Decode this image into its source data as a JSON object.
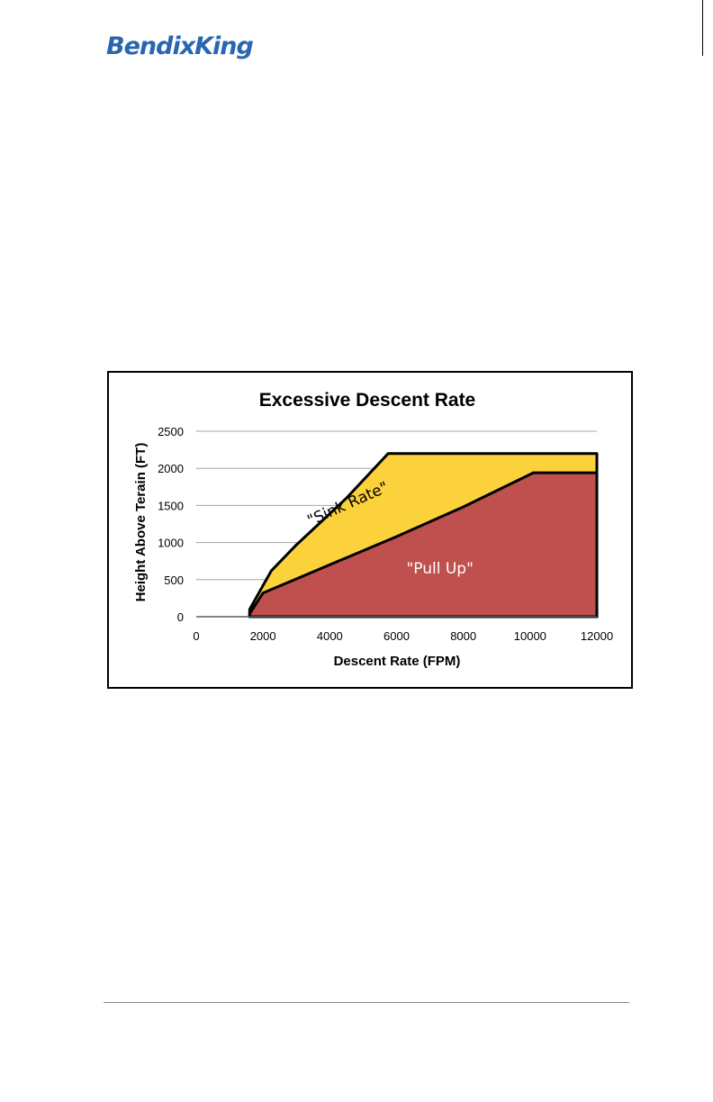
{
  "header": {
    "logo_text": "BendixKing",
    "brand_color": "#2a66b0"
  },
  "chart_data": {
    "type": "area",
    "title": "Excessive Descent Rate",
    "xlabel": "Descent Rate (FPM)",
    "ylabel": "Height Above Terain (FT)",
    "xlim": [
      0,
      12000
    ],
    "ylim": [
      0,
      2500
    ],
    "x_ticks": [
      "0",
      "2000",
      "4000",
      "6000",
      "8000",
      "10000",
      "12000"
    ],
    "y_ticks": [
      "0",
      "500",
      "1000",
      "1500",
      "2000",
      "2500"
    ],
    "grid": "horizontal",
    "series": [
      {
        "name": "\"Sink Rate\"",
        "color": "#fcd23c",
        "points": [
          [
            1600,
            0
          ],
          [
            1600,
            100
          ],
          [
            2250,
            620
          ],
          [
            3000,
            970
          ],
          [
            4500,
            1600
          ],
          [
            5750,
            2200
          ],
          [
            12000,
            2200
          ],
          [
            12000,
            0
          ]
        ]
      },
      {
        "name": "\"Pull Up\"",
        "color": "#c0504d",
        "points": [
          [
            1600,
            0
          ],
          [
            1600,
            40
          ],
          [
            2000,
            320
          ],
          [
            4000,
            700
          ],
          [
            6000,
            1080
          ],
          [
            8000,
            1480
          ],
          [
            10100,
            1940
          ],
          [
            12000,
            1940
          ],
          [
            12000,
            0
          ]
        ]
      }
    ],
    "baseline": [
      [
        0,
        0
      ],
      [
        1600,
        0
      ]
    ],
    "annotations": [
      {
        "text": "\"Sink Rate\"",
        "x": 4600,
        "y": 1460,
        "rotate_deg": -24,
        "color": "#000000"
      },
      {
        "text": "\"Pull Up\"",
        "x": 7300,
        "y": 580,
        "rotate_deg": 0,
        "color": "#ffffff"
      }
    ]
  }
}
